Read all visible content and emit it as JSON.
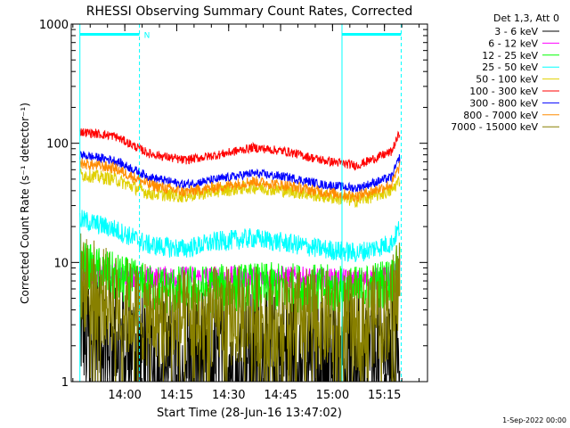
{
  "chart_data": {
    "type": "line",
    "title": "RHESSI Observing Summary Count Rates, Corrected",
    "xlabel": "Start Time (28-Jun-16 13:47:02)",
    "ylabel": "Corrected Count Rate (s⁻¹ detector⁻¹)",
    "footer": "1-Sep-2022 00:00",
    "x_unit": "minutes since 13:47:02",
    "xlim": [
      -2.5,
      100.4
    ],
    "ylim": [
      1,
      1000
    ],
    "yscale": "log",
    "x_ticks": [
      {
        "t": 12.97,
        "label": "14:00"
      },
      {
        "t": 27.97,
        "label": "14:15"
      },
      {
        "t": 42.97,
        "label": "14:30"
      },
      {
        "t": 57.97,
        "label": "14:45"
      },
      {
        "t": 72.97,
        "label": "15:00"
      },
      {
        "t": 87.97,
        "label": "15:15"
      }
    ],
    "y_ticks": [
      {
        "v": 1,
        "label": "1"
      },
      {
        "v": 10,
        "label": "10"
      },
      {
        "v": 100,
        "label": "100"
      },
      {
        "v": 1000,
        "label": "1000"
      }
    ],
    "legend_header": "Det 1,3, Att 0",
    "annotations": {
      "night_marker": "N",
      "vlines": [
        {
          "t": 0.0,
          "style": "solid"
        },
        {
          "t": 17.2,
          "style": "dashed"
        },
        {
          "t": 75.7,
          "style": "solid"
        },
        {
          "t": 92.8,
          "style": "dashed"
        }
      ],
      "bars": [
        {
          "t_start": 0.0,
          "t_end": 17.2,
          "value": 820
        },
        {
          "t_start": 75.7,
          "t_end": 92.8,
          "value": 820
        }
      ]
    },
    "series": [
      {
        "name": "3 - 6 keV",
        "color": "#000000",
        "t": [
          0,
          10,
          20,
          30,
          40,
          50,
          60,
          70,
          80,
          90,
          92.5
        ],
        "values": [
          3.0,
          2.2,
          1.7,
          1.7,
          1.7,
          1.7,
          1.7,
          1.7,
          1.7,
          2.0,
          3.0
        ]
      },
      {
        "name": "6 - 12 keV",
        "color": "#ff00ff",
        "t": [
          0,
          10,
          20,
          30,
          40,
          50,
          60,
          70,
          80,
          90,
          92.5
        ],
        "values": [
          8.0,
          7.8,
          7.5,
          7.5,
          7.5,
          7.5,
          7.5,
          7.3,
          7.0,
          7.5,
          9.0
        ]
      },
      {
        "name": "12 - 25 keV",
        "color": "#00ff00",
        "t": [
          0,
          10,
          20,
          30,
          40,
          50,
          60,
          70,
          80,
          90,
          92.5
        ],
        "values": [
          9.5,
          7.5,
          6.0,
          5.8,
          6.0,
          6.2,
          6.2,
          6.0,
          5.8,
          7.0,
          10.0
        ]
      },
      {
        "name": "25 - 50 keV",
        "color": "#00ffff",
        "t": [
          0,
          10,
          20,
          30,
          40,
          50,
          60,
          70,
          80,
          90,
          92.5
        ],
        "values": [
          23,
          19,
          14,
          13,
          15,
          16,
          14.5,
          13,
          12,
          14.5,
          20
        ]
      },
      {
        "name": "50 - 100 keV",
        "color": "#e0d000",
        "t": [
          0,
          10,
          20,
          30,
          40,
          50,
          60,
          70,
          80,
          90,
          92.5
        ],
        "values": [
          55,
          50,
          38,
          36,
          40,
          43,
          40,
          36,
          33,
          40,
          50
        ]
      },
      {
        "name": "100 - 300 keV",
        "color": "#ff0000",
        "t": [
          0,
          10,
          20,
          30,
          40,
          50,
          60,
          70,
          80,
          90,
          92.5
        ],
        "values": [
          125,
          115,
          82,
          72,
          80,
          92,
          85,
          72,
          65,
          85,
          125
        ]
      },
      {
        "name": "300 - 800 keV",
        "color": "#0000ff",
        "t": [
          0,
          10,
          20,
          30,
          40,
          50,
          60,
          70,
          80,
          90,
          92.5
        ],
        "values": [
          80,
          72,
          52,
          45,
          50,
          56,
          52,
          45,
          42,
          52,
          78
        ]
      },
      {
        "name": "800 - 7000 keV",
        "color": "#ff8c00",
        "t": [
          0,
          10,
          20,
          30,
          40,
          50,
          60,
          70,
          80,
          90,
          92.5
        ],
        "values": [
          68,
          62,
          45,
          39,
          43,
          48,
          44,
          39,
          36,
          45,
          66
        ]
      },
      {
        "name": "7000 - 15000 keV",
        "color": "#888000",
        "t": [
          0,
          10,
          20,
          30,
          40,
          50,
          60,
          70,
          80,
          90,
          92.5
        ],
        "values": [
          7.0,
          4.5,
          3.5,
          3.3,
          3.5,
          3.6,
          3.5,
          3.3,
          3.2,
          4.0,
          8.0
        ]
      }
    ]
  }
}
